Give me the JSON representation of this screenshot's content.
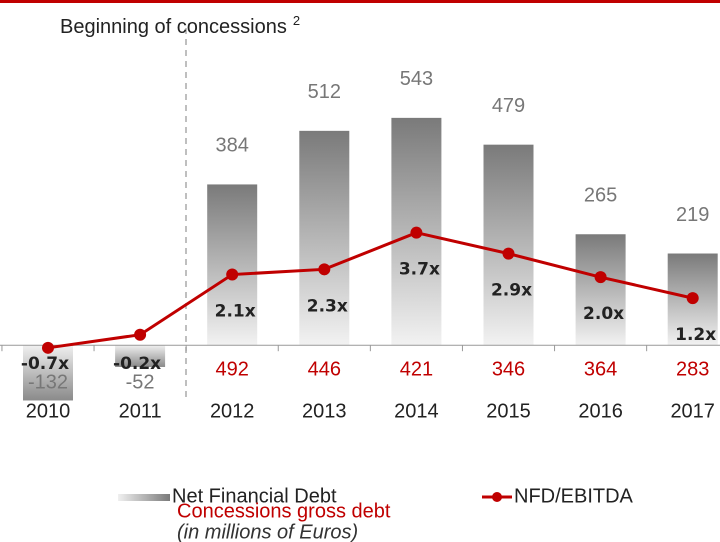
{
  "chart_data": {
    "type": "bar_line",
    "annotation": "Beginning of concessions",
    "annotation_note": "2",
    "categories": [
      "2010",
      "2011",
      "2012",
      "2013",
      "2014",
      "2015",
      "2016",
      "2017"
    ],
    "series": [
      {
        "name": "Net Financial Debt",
        "color": "#808080",
        "values": [
          -132,
          -52,
          384,
          512,
          543,
          479,
          265,
          219
        ]
      },
      {
        "name": "NFD/EBITDA",
        "color": "#c00000",
        "axis": "y2",
        "values": [
          -0.7,
          -0.2,
          2.1,
          2.3,
          3.7,
          2.9,
          2.0,
          1.2
        ],
        "value_labels": [
          "-0.7x",
          "-0.2x",
          "2.1x",
          "2.3x",
          "3.7x",
          "2.9x",
          "2.0x",
          "1.2x"
        ]
      }
    ],
    "gross_debt": {
      "name": "Concessions gross debt",
      "color": "#c00000",
      "values": [
        null,
        null,
        492,
        446,
        421,
        346,
        364,
        283
      ]
    },
    "subtitle": "(in millions of Euros)",
    "ylim": [
      -150,
      600
    ],
    "y2lim": [
      -3,
      9
    ]
  }
}
